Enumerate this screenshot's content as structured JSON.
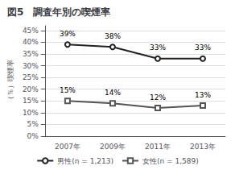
{
  "chart_data": {
    "type": "line",
    "title": "図5　調査年別の喫煙率",
    "categories": [
      "2007年",
      "2009年",
      "2011年",
      "2013年"
    ],
    "series": [
      {
        "name": "男性(n = 1,213)",
        "color": "#222222",
        "marker": "circle",
        "values": [
          39,
          38,
          33,
          33
        ],
        "value_labels": [
          "39%",
          "38%",
          "33%",
          "33%"
        ]
      },
      {
        "name": "女性(n = 1,589)",
        "color": "#555555",
        "marker": "square",
        "values": [
          15,
          14,
          12,
          13
        ],
        "value_labels": [
          "15%",
          "14%",
          "12%",
          "13%"
        ]
      }
    ],
    "ylabel": "（％）喫煙率",
    "ylim": [
      0,
      47
    ],
    "yticks": [
      {
        "value": 0,
        "label": "0%"
      },
      {
        "value": 5,
        "label": "5%"
      },
      {
        "value": 10,
        "label": "10%"
      },
      {
        "value": 15,
        "label": "15%"
      },
      {
        "value": 20,
        "label": "20%"
      },
      {
        "value": 25,
        "label": "25%"
      },
      {
        "value": 30,
        "label": "30%"
      },
      {
        "value": 35,
        "label": "35%"
      },
      {
        "value": 40,
        "label": "40%"
      },
      {
        "value": 45,
        "label": "45%"
      }
    ],
    "grid": true,
    "legend": "bottom",
    "data_labels": true
  }
}
